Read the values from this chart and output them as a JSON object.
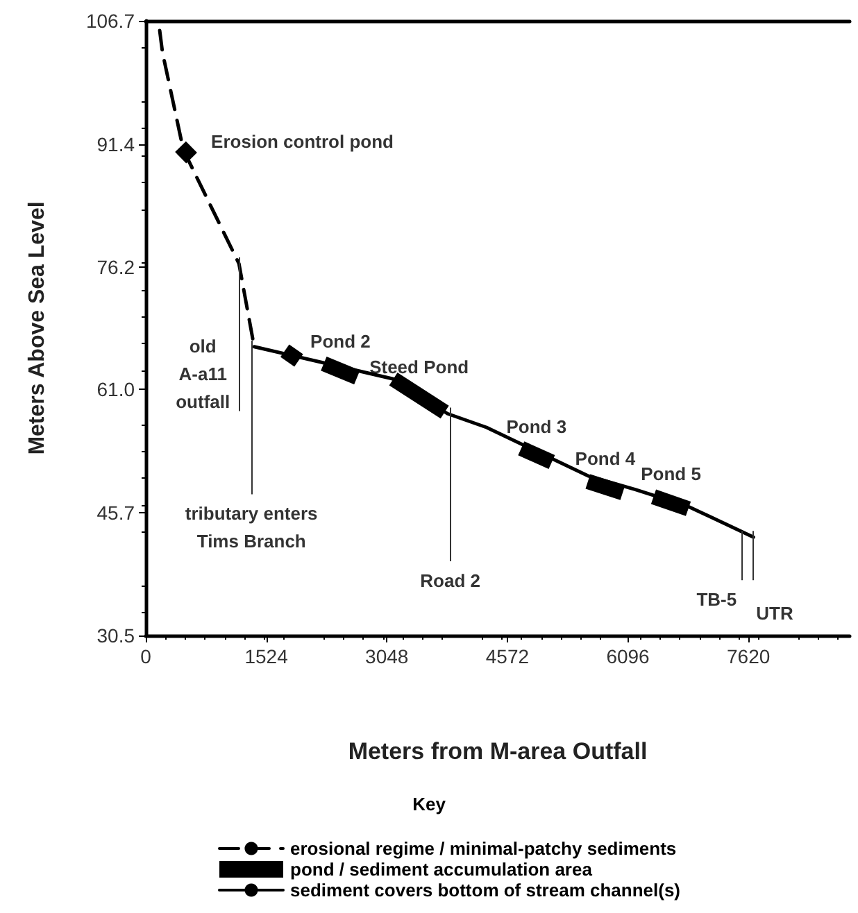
{
  "chart_data": {
    "type": "line",
    "xlabel": "Meters from M-area Outfall",
    "ylabel": "Meters Above Sea Level",
    "legend_title": "Key",
    "xlim": [
      0,
      8900
    ],
    "xticks": [
      0,
      1524,
      3048,
      4572,
      6096,
      7620
    ],
    "ylim": [
      30.5,
      106.7
    ],
    "yticks": [
      {
        "value": 30.5,
        "label": "30.5"
      },
      {
        "value": 45.7,
        "label": "45.7"
      },
      {
        "value": 61,
        "label": "61.0"
      },
      {
        "value": 76.2,
        "label": "76.2"
      },
      {
        "value": 91.4,
        "label": "91.4"
      },
      {
        "value": 106.7,
        "label": "106.7"
      }
    ],
    "grid": false,
    "legend": "bottom",
    "marker": "none",
    "series": [
      {
        "name": "erosional regime / minimal-patchy sediments",
        "color": "#000000",
        "line_style": "dashed",
        "x": [
          176,
          211,
          475,
          1178,
          1371
        ],
        "values": [
          105.5,
          102.8,
          90.7,
          76.6,
          66.3
        ]
      },
      {
        "name": "pond / sediment accumulation area",
        "color": "#000000",
        "line_style": "solid",
        "x": [
          439,
          580,
          1000,
          1758,
          1934,
          2100,
          2250,
          2672,
          2900,
          3130,
          3780,
          4000,
          4747,
          5134,
          5300,
          5590,
          6030,
          6200,
          6420,
          6860
        ],
        "values": [
          91.1,
          89.7,
          null,
          65.8,
          64.6,
          null,
          64.2,
          62.5,
          null,
          62.3,
          58.2,
          null,
          53.7,
          52.0,
          null,
          49.6,
          48.2,
          null,
          47.7,
          46.2
        ]
      },
      {
        "name": "sediment covers bottom of stream channel(s)",
        "color": "#000000",
        "line_style": "solid",
        "x": [
          1371,
          3130,
          3815,
          4307,
          5590,
          6190,
          6857,
          7683
        ],
        "values": [
          66.3,
          62.3,
          58.0,
          56.3,
          50.3,
          48.6,
          46.5,
          42.7
        ]
      }
    ],
    "ref_lines": [
      {
        "axis": "x",
        "value": 1178,
        "label": "old\nA-a11\noutfall"
      },
      {
        "axis": "x",
        "value": 1336,
        "label": "tributary enters\nTims Branch"
      },
      {
        "axis": "x",
        "value": 3850,
        "label": "Road 2"
      },
      {
        "axis": "x",
        "value": 7541,
        "label": "TB-5"
      },
      {
        "axis": "x",
        "value": 7683,
        "label": "UTR"
      }
    ],
    "annotations": [
      {
        "text": "Erosion control pond",
        "x": 510,
        "y": 90.4
      },
      {
        "text": "Pond 2",
        "x": 2461,
        "y": 63.4
      },
      {
        "text": "Steed Pond",
        "x": 3455,
        "y": 60.3
      },
      {
        "text": "Pond 3",
        "x": 4940,
        "y": 52.9
      },
      {
        "text": "Pond 4",
        "x": 5810,
        "y": 48.9
      },
      {
        "text": "Pond 5",
        "x": 6640,
        "y": 47.0
      }
    ]
  }
}
